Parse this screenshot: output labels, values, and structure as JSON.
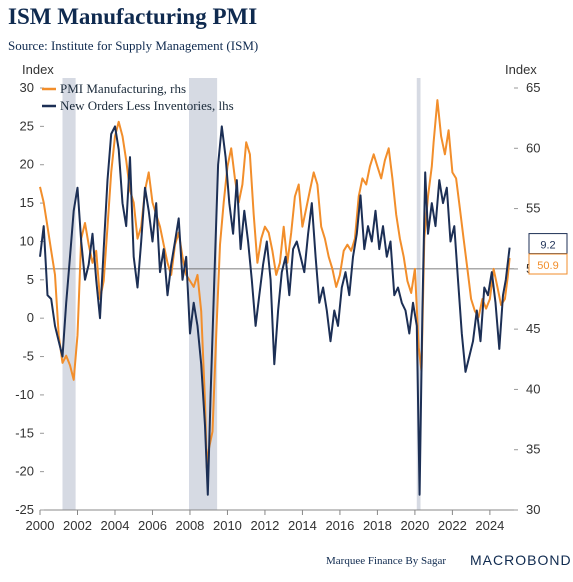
{
  "title": "ISM Manufacturing PMI",
  "subtitle": "Source: Institute for Supply Management (ISM)",
  "footer": {
    "credit": "Marquee Finance By Sagar",
    "brand": "MACROBOND"
  },
  "colors": {
    "pmi": "#f28e2b",
    "orders": "#1c2f55",
    "recession": "#d6dae3",
    "zero_line": "#555555",
    "grid": "#e8e8e8"
  },
  "chart_data": {
    "type": "line",
    "left_axis": {
      "label": "Index",
      "ylim": [
        -25,
        30
      ],
      "ticks": [
        30,
        25,
        20,
        15,
        10,
        5,
        0,
        -5,
        -10,
        -15,
        -20,
        -25
      ]
    },
    "right_axis": {
      "label": "Index",
      "ylim": [
        30,
        65
      ],
      "ticks": [
        65,
        60,
        55,
        50,
        45,
        40,
        35,
        30
      ]
    },
    "x_axis": {
      "xlim": [
        2000,
        2025.5
      ],
      "ticks": [
        "2000",
        "2002",
        "2004",
        "2006",
        "2008",
        "2010",
        "2012",
        "2014",
        "2016",
        "2018",
        "2020",
        "2022",
        "2024"
      ]
    },
    "shaded_periods": [
      [
        2001.2,
        2001.9
      ],
      [
        2007.95,
        2009.45
      ],
      [
        2020.1,
        2020.3
      ]
    ],
    "legend_position": "top-left",
    "series": [
      {
        "name": "PMI Manufacturing, rhs",
        "axis": "right",
        "end_label": "50.9",
        "points": [
          [
            2000.0,
            56.8
          ],
          [
            2000.2,
            55.5
          ],
          [
            2000.4,
            53.5
          ],
          [
            2000.6,
            51.5
          ],
          [
            2000.8,
            49.5
          ],
          [
            2001.0,
            44.5
          ],
          [
            2001.2,
            42.2
          ],
          [
            2001.4,
            42.8
          ],
          [
            2001.6,
            42.0
          ],
          [
            2001.8,
            40.8
          ],
          [
            2002.0,
            44.5
          ],
          [
            2002.2,
            52.5
          ],
          [
            2002.4,
            53.8
          ],
          [
            2002.6,
            52.0
          ],
          [
            2002.8,
            50.5
          ],
          [
            2003.0,
            51.5
          ],
          [
            2003.2,
            47.5
          ],
          [
            2003.4,
            49.0
          ],
          [
            2003.6,
            53.5
          ],
          [
            2003.8,
            58.0
          ],
          [
            2004.0,
            61.0
          ],
          [
            2004.2,
            62.2
          ],
          [
            2004.4,
            61.0
          ],
          [
            2004.6,
            59.0
          ],
          [
            2004.8,
            56.5
          ],
          [
            2005.0,
            55.5
          ],
          [
            2005.2,
            52.5
          ],
          [
            2005.4,
            53.5
          ],
          [
            2005.6,
            56.5
          ],
          [
            2005.8,
            58.0
          ],
          [
            2006.0,
            55.5
          ],
          [
            2006.2,
            54.5
          ],
          [
            2006.4,
            53.5
          ],
          [
            2006.6,
            52.0
          ],
          [
            2006.8,
            50.5
          ],
          [
            2007.0,
            49.5
          ],
          [
            2007.2,
            52.0
          ],
          [
            2007.4,
            53.0
          ],
          [
            2007.6,
            51.0
          ],
          [
            2007.8,
            49.5
          ],
          [
            2008.0,
            49.0
          ],
          [
            2008.2,
            48.5
          ],
          [
            2008.4,
            49.5
          ],
          [
            2008.6,
            46.5
          ],
          [
            2008.8,
            39.0
          ],
          [
            2008.9,
            33.5
          ],
          [
            2009.0,
            35.0
          ],
          [
            2009.2,
            36.5
          ],
          [
            2009.4,
            44.5
          ],
          [
            2009.6,
            52.0
          ],
          [
            2009.8,
            55.5
          ],
          [
            2010.0,
            58.5
          ],
          [
            2010.2,
            60.0
          ],
          [
            2010.4,
            57.5
          ],
          [
            2010.6,
            55.5
          ],
          [
            2010.8,
            57.0
          ],
          [
            2011.0,
            60.5
          ],
          [
            2011.2,
            59.5
          ],
          [
            2011.4,
            54.5
          ],
          [
            2011.6,
            50.5
          ],
          [
            2011.8,
            52.5
          ],
          [
            2012.0,
            53.5
          ],
          [
            2012.2,
            53.0
          ],
          [
            2012.4,
            51.5
          ],
          [
            2012.6,
            49.5
          ],
          [
            2012.8,
            50.5
          ],
          [
            2013.0,
            53.5
          ],
          [
            2013.2,
            50.5
          ],
          [
            2013.4,
            53.0
          ],
          [
            2013.6,
            56.0
          ],
          [
            2013.8,
            57.0
          ],
          [
            2014.0,
            53.5
          ],
          [
            2014.2,
            55.0
          ],
          [
            2014.4,
            56.5
          ],
          [
            2014.6,
            58.0
          ],
          [
            2014.8,
            57.0
          ],
          [
            2015.0,
            53.5
          ],
          [
            2015.2,
            52.5
          ],
          [
            2015.4,
            51.0
          ],
          [
            2015.6,
            50.0
          ],
          [
            2015.8,
            48.5
          ],
          [
            2016.0,
            49.5
          ],
          [
            2016.2,
            51.5
          ],
          [
            2016.4,
            52.0
          ],
          [
            2016.6,
            51.5
          ],
          [
            2016.8,
            52.5
          ],
          [
            2017.0,
            56.0
          ],
          [
            2017.2,
            57.5
          ],
          [
            2017.4,
            57.0
          ],
          [
            2017.6,
            58.5
          ],
          [
            2017.8,
            59.5
          ],
          [
            2018.0,
            58.5
          ],
          [
            2018.2,
            57.5
          ],
          [
            2018.4,
            59.0
          ],
          [
            2018.6,
            60.0
          ],
          [
            2018.8,
            57.5
          ],
          [
            2019.0,
            54.5
          ],
          [
            2019.2,
            52.5
          ],
          [
            2019.4,
            51.0
          ],
          [
            2019.6,
            49.0
          ],
          [
            2019.8,
            48.0
          ],
          [
            2020.0,
            50.0
          ],
          [
            2020.2,
            43.5
          ],
          [
            2020.35,
            41.5
          ],
          [
            2020.5,
            52.5
          ],
          [
            2020.7,
            56.0
          ],
          [
            2020.9,
            58.5
          ],
          [
            2021.0,
            60.5
          ],
          [
            2021.2,
            64.0
          ],
          [
            2021.4,
            61.0
          ],
          [
            2021.6,
            59.5
          ],
          [
            2021.8,
            61.5
          ],
          [
            2022.0,
            58.0
          ],
          [
            2022.2,
            57.5
          ],
          [
            2022.4,
            55.0
          ],
          [
            2022.6,
            52.5
          ],
          [
            2022.8,
            50.0
          ],
          [
            2023.0,
            47.5
          ],
          [
            2023.2,
            46.5
          ],
          [
            2023.4,
            46.0
          ],
          [
            2023.6,
            47.5
          ],
          [
            2023.8,
            46.7
          ],
          [
            2024.0,
            47.5
          ],
          [
            2024.2,
            50.0
          ],
          [
            2024.4,
            48.5
          ],
          [
            2024.6,
            47.0
          ],
          [
            2024.8,
            47.5
          ],
          [
            2024.95,
            49.3
          ],
          [
            2025.05,
            50.9
          ]
        ]
      },
      {
        "name": "New Orders Less Inventories, lhs",
        "axis": "left",
        "end_label": "9.2",
        "points": [
          [
            2000.0,
            8.0
          ],
          [
            2000.2,
            12.0
          ],
          [
            2000.4,
            3.0
          ],
          [
            2000.6,
            2.5
          ],
          [
            2000.8,
            -1.0
          ],
          [
            2001.0,
            -3.0
          ],
          [
            2001.2,
            -5.0
          ],
          [
            2001.4,
            2.0
          ],
          [
            2001.6,
            8.0
          ],
          [
            2001.8,
            14.0
          ],
          [
            2002.0,
            17.0
          ],
          [
            2002.2,
            10.0
          ],
          [
            2002.4,
            5.0
          ],
          [
            2002.6,
            7.0
          ],
          [
            2002.8,
            11.0
          ],
          [
            2003.0,
            5.0
          ],
          [
            2003.2,
            0.0
          ],
          [
            2003.4,
            9.0
          ],
          [
            2003.6,
            18.0
          ],
          [
            2003.8,
            24.0
          ],
          [
            2004.0,
            25.0
          ],
          [
            2004.2,
            22.0
          ],
          [
            2004.4,
            15.0
          ],
          [
            2004.6,
            12.0
          ],
          [
            2004.8,
            21.0
          ],
          [
            2005.0,
            8.0
          ],
          [
            2005.2,
            4.0
          ],
          [
            2005.4,
            10.0
          ],
          [
            2005.6,
            17.0
          ],
          [
            2005.8,
            14.0
          ],
          [
            2006.0,
            10.0
          ],
          [
            2006.2,
            15.0
          ],
          [
            2006.4,
            6.0
          ],
          [
            2006.6,
            9.0
          ],
          [
            2006.8,
            3.0
          ],
          [
            2007.0,
            7.0
          ],
          [
            2007.2,
            10.0
          ],
          [
            2007.4,
            13.0
          ],
          [
            2007.6,
            5.0
          ],
          [
            2007.8,
            8.0
          ],
          [
            2008.0,
            -2.0
          ],
          [
            2008.2,
            2.0
          ],
          [
            2008.4,
            -1.0
          ],
          [
            2008.6,
            -6.0
          ],
          [
            2008.8,
            -14.0
          ],
          [
            2008.95,
            -23.0
          ],
          [
            2009.1,
            -10.0
          ],
          [
            2009.3,
            5.0
          ],
          [
            2009.5,
            20.0
          ],
          [
            2009.7,
            25.0
          ],
          [
            2009.9,
            21.0
          ],
          [
            2010.1,
            15.0
          ],
          [
            2010.3,
            11.0
          ],
          [
            2010.5,
            18.0
          ],
          [
            2010.7,
            9.0
          ],
          [
            2010.9,
            14.0
          ],
          [
            2011.1,
            10.0
          ],
          [
            2011.3,
            5.0
          ],
          [
            2011.5,
            -1.0
          ],
          [
            2011.7,
            3.0
          ],
          [
            2011.9,
            7.0
          ],
          [
            2012.1,
            10.0
          ],
          [
            2012.3,
            5.0
          ],
          [
            2012.5,
            -6.0
          ],
          [
            2012.7,
            1.0
          ],
          [
            2012.9,
            6.0
          ],
          [
            2013.1,
            8.0
          ],
          [
            2013.3,
            3.0
          ],
          [
            2013.5,
            9.0
          ],
          [
            2013.7,
            10.0
          ],
          [
            2013.9,
            8.0
          ],
          [
            2014.1,
            6.0
          ],
          [
            2014.3,
            11.0
          ],
          [
            2014.5,
            15.0
          ],
          [
            2014.7,
            8.0
          ],
          [
            2014.9,
            2.0
          ],
          [
            2015.1,
            4.0
          ],
          [
            2015.3,
            1.0
          ],
          [
            2015.5,
            -3.0
          ],
          [
            2015.7,
            1.0
          ],
          [
            2015.9,
            -1.0
          ],
          [
            2016.1,
            4.0
          ],
          [
            2016.3,
            6.0
          ],
          [
            2016.5,
            3.0
          ],
          [
            2016.7,
            8.0
          ],
          [
            2016.9,
            11.0
          ],
          [
            2017.1,
            16.0
          ],
          [
            2017.3,
            9.0
          ],
          [
            2017.5,
            12.0
          ],
          [
            2017.7,
            10.0
          ],
          [
            2017.9,
            14.0
          ],
          [
            2018.1,
            9.0
          ],
          [
            2018.3,
            12.0
          ],
          [
            2018.5,
            8.0
          ],
          [
            2018.7,
            10.0
          ],
          [
            2018.9,
            3.0
          ],
          [
            2019.1,
            4.0
          ],
          [
            2019.3,
            2.0
          ],
          [
            2019.5,
            1.0
          ],
          [
            2019.7,
            -2.0
          ],
          [
            2019.9,
            2.0
          ],
          [
            2020.1,
            -1.0
          ],
          [
            2020.25,
            -23.0
          ],
          [
            2020.4,
            1.0
          ],
          [
            2020.55,
            19.0
          ],
          [
            2020.7,
            11.0
          ],
          [
            2020.9,
            15.0
          ],
          [
            2021.1,
            12.0
          ],
          [
            2021.3,
            18.0
          ],
          [
            2021.5,
            15.0
          ],
          [
            2021.7,
            17.0
          ],
          [
            2021.9,
            10.0
          ],
          [
            2022.1,
            12.0
          ],
          [
            2022.3,
            5.0
          ],
          [
            2022.5,
            -2.0
          ],
          [
            2022.7,
            -7.0
          ],
          [
            2022.9,
            -5.0
          ],
          [
            2023.1,
            -3.0
          ],
          [
            2023.3,
            1.0
          ],
          [
            2023.5,
            -3.0
          ],
          [
            2023.7,
            4.0
          ],
          [
            2023.9,
            3.0
          ],
          [
            2024.1,
            6.0
          ],
          [
            2024.3,
            2.0
          ],
          [
            2024.5,
            -4.0
          ],
          [
            2024.7,
            3.0
          ],
          [
            2024.85,
            5.0
          ],
          [
            2025.05,
            9.2
          ]
        ]
      }
    ]
  }
}
